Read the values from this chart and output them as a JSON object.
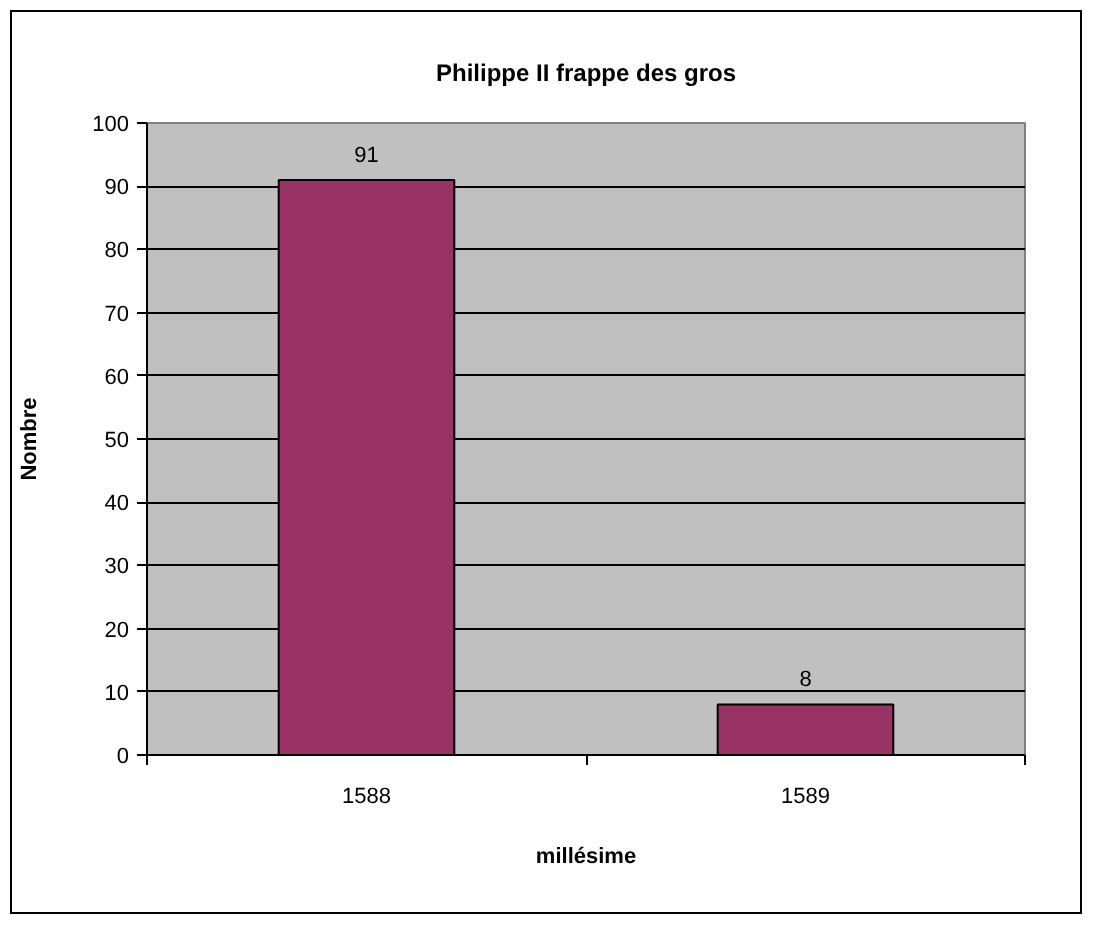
{
  "chart_data": {
    "type": "bar",
    "title": "Philippe II frappe des gros",
    "xlabel": "millésime",
    "ylabel": "Nombre",
    "categories": [
      "1588",
      "1589"
    ],
    "values": [
      91,
      8
    ],
    "color": "#993366",
    "ylim": [
      0,
      100
    ],
    "yticks": [
      0,
      10,
      20,
      30,
      40,
      50,
      60,
      70,
      80,
      90,
      100
    ],
    "grid": "y",
    "data_labels": true
  }
}
